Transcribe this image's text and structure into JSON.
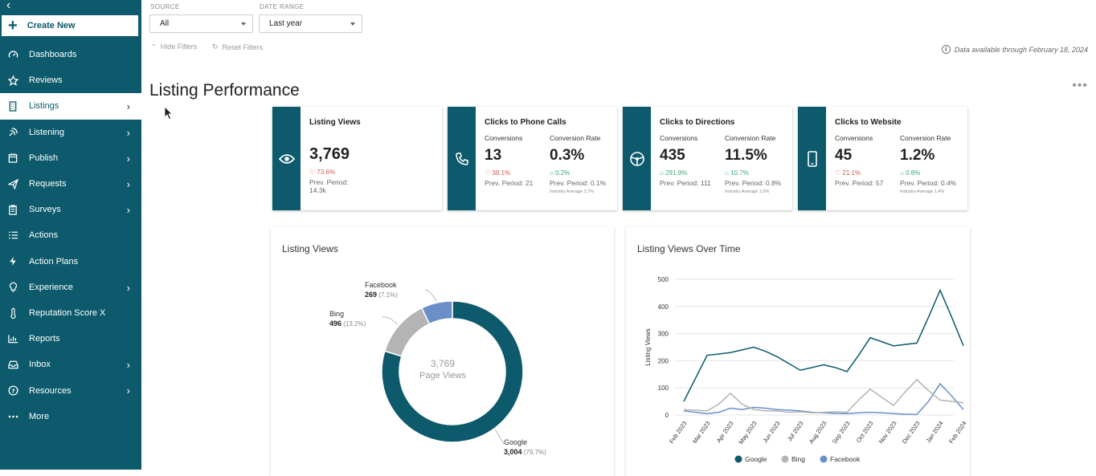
{
  "sidebar": {
    "create_label": "Create New",
    "items": [
      {
        "label": "Dashboards",
        "icon": "gauge-icon",
        "chevron": false
      },
      {
        "label": "Reviews",
        "icon": "star-icon",
        "chevron": false
      },
      {
        "label": "Listings",
        "icon": "building-icon",
        "chevron": true,
        "active": true
      },
      {
        "label": "Listening",
        "icon": "satellite-icon",
        "chevron": true
      },
      {
        "label": "Publish",
        "icon": "calendar-icon",
        "chevron": true
      },
      {
        "label": "Requests",
        "icon": "paper-plane-icon",
        "chevron": true
      },
      {
        "label": "Surveys",
        "icon": "clipboard-icon",
        "chevron": true
      },
      {
        "label": "Actions",
        "icon": "checklist-icon",
        "chevron": false
      },
      {
        "label": "Action Plans",
        "icon": "lightning-icon",
        "chevron": false
      },
      {
        "label": "Experience",
        "icon": "lightbulb-icon",
        "chevron": true
      },
      {
        "label": "Reputation Score X",
        "icon": "thermometer-icon",
        "chevron": false
      },
      {
        "label": "Reports",
        "icon": "bar-chart-icon",
        "chevron": false
      },
      {
        "label": "Inbox",
        "icon": "inbox-icon",
        "chevron": true
      },
      {
        "label": "Resources",
        "icon": "help-circle-icon",
        "chevron": true
      },
      {
        "label": "More",
        "icon": "more-dots-icon",
        "chevron": false
      }
    ]
  },
  "filters": {
    "source_label": "SOURCE",
    "source_value": "All",
    "date_label": "DATE RANGE",
    "date_value": "Last year",
    "hide_label": "Hide Filters",
    "reset_label": "Reset Filters",
    "availability": "Data available through February 18, 2024"
  },
  "page_title": "Listing Performance",
  "cards": {
    "views": {
      "title": "Listing Views",
      "value": "3,769",
      "change": "73.6%",
      "prev": "Prev. Period:",
      "prev_value": "14.3k"
    },
    "phone": {
      "title": "Clicks to Phone Calls",
      "conv_label": "Conversions",
      "conv_value": "13",
      "conv_change": "38.1%",
      "conv_prev": "Prev. Period: 21",
      "rate_label": "Conversion Rate",
      "rate_value": "0.3%",
      "rate_change": "0.2%",
      "rate_prev": "Prev. Period: 0.1%",
      "rate_ind": "Industry Average 2.7%"
    },
    "directions": {
      "title": "Clicks to Directions",
      "conv_label": "Conversions",
      "conv_value": "435",
      "conv_change": "291.9%",
      "conv_prev": "Prev. Period: 111",
      "rate_label": "Conversion Rate",
      "rate_value": "11.5%",
      "rate_change": "10.7%",
      "rate_prev": "Prev. Period: 0.8%",
      "rate_ind": "Industry Average 1.0%"
    },
    "website": {
      "title": "Clicks to Website",
      "conv_label": "Conversions",
      "conv_value": "45",
      "conv_change": "21.1%",
      "conv_prev": "Prev. Period: 57",
      "rate_label": "Conversion Rate",
      "rate_value": "1.2%",
      "rate_change": "0.8%",
      "rate_prev": "Prev. Period: 0.4%",
      "rate_ind": "Industry Average 1.4%"
    }
  },
  "colors": {
    "google": "#0c5a6b",
    "bing": "#b4b4b4",
    "facebook": "#6b8fc9"
  },
  "chart_data": [
    {
      "type": "pie",
      "title": "Listing Views",
      "center_value": "3,769",
      "center_label": "Page Views",
      "slices": [
        {
          "name": "Google",
          "value": 3004,
          "value_label": "3,004",
          "pct_label": "(79.7%)"
        },
        {
          "name": "Bing",
          "value": 496,
          "value_label": "496",
          "pct_label": "(13.2%)"
        },
        {
          "name": "Facebook",
          "value": 269,
          "value_label": "269",
          "pct_label": "(7.1%)"
        }
      ]
    },
    {
      "type": "line",
      "title": "Listing Views Over Time",
      "ylabel": "Listing Views",
      "ylim": [
        0,
        500
      ],
      "yticks": [
        0,
        100,
        200,
        300,
        400,
        500
      ],
      "categories": [
        "Feb 2023",
        "Mar 2023",
        "Apr 2023",
        "May 2023",
        "Jun 2023",
        "Jul 2023",
        "Aug 2023",
        "Sep 2023",
        "Oct 2023",
        "Nov 2023",
        "Dec 2023",
        "Jan 2024",
        "Feb 2024"
      ],
      "x": [
        0,
        1,
        1.5,
        2,
        2.5,
        3,
        3.5,
        4,
        4.5,
        5,
        5.5,
        6,
        6.5,
        7,
        7.5,
        8,
        8.5,
        9,
        9.5,
        10,
        10.5,
        11,
        11.5,
        12
      ],
      "series": [
        {
          "name": "Google",
          "values": [
            50,
            220,
            225,
            230,
            240,
            250,
            235,
            215,
            190,
            165,
            175,
            185,
            175,
            160,
            220,
            285,
            270,
            255,
            260,
            265,
            360,
            460,
            360,
            255
          ]
        },
        {
          "name": "Bing",
          "values": [
            20,
            15,
            40,
            80,
            40,
            20,
            15,
            15,
            10,
            12,
            8,
            10,
            12,
            10,
            55,
            95,
            65,
            35,
            85,
            130,
            90,
            55,
            50,
            45
          ]
        },
        {
          "name": "Facebook",
          "values": [
            15,
            5,
            10,
            25,
            20,
            28,
            25,
            20,
            18,
            15,
            10,
            8,
            6,
            5,
            8,
            10,
            8,
            5,
            3,
            2,
            50,
            115,
            70,
            20
          ]
        }
      ]
    }
  ]
}
